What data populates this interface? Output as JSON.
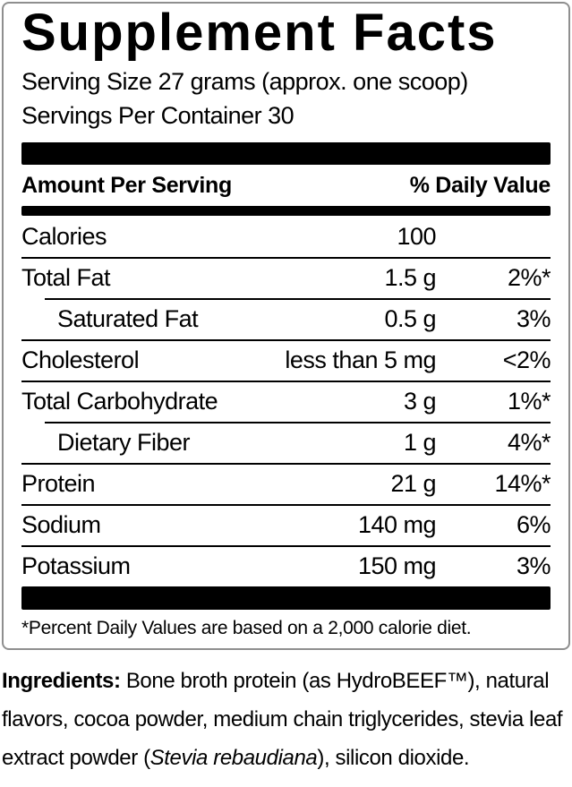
{
  "label": {
    "title": "Supplement Facts",
    "serving_size": "Serving Size 27 grams (approx. one scoop)",
    "servings_per_container": "Servings Per Container 30",
    "columns": {
      "amount_per_serving": "Amount Per Serving",
      "daily_value": "% Daily Value"
    },
    "rows": [
      {
        "name": "Calories",
        "amount": "100",
        "dv": "",
        "indent": false
      },
      {
        "name": "Total Fat",
        "amount": "1.5 g",
        "dv": "2%*",
        "indent": false
      },
      {
        "name": "Saturated Fat",
        "amount": "0.5 g",
        "dv": "3%",
        "indent": true
      },
      {
        "name": "Cholesterol",
        "amount": "less than 5 mg",
        "dv": "<2%",
        "indent": false
      },
      {
        "name": "Total Carbohydrate",
        "amount": "3 g",
        "dv": "1%*",
        "indent": false
      },
      {
        "name": "Dietary Fiber",
        "amount": "1 g",
        "dv": "4%*",
        "indent": true
      },
      {
        "name": "Protein",
        "amount": "21 g",
        "dv": "14%*",
        "indent": false
      },
      {
        "name": "Sodium",
        "amount": "140 mg",
        "dv": "6%",
        "indent": false
      },
      {
        "name": "Potassium",
        "amount": "150 mg",
        "dv": "3%",
        "indent": false
      }
    ],
    "footnote": "*Percent Daily Values are based on a 2,000 calorie diet.",
    "ingredients": {
      "label": "Ingredients:",
      "text_before_species": " Bone broth protein (as HydroBEEF™), natural flavors, cocoa powder, medium chain triglycerides, stevia leaf extract powder (",
      "species": "Stevia rebaudiana",
      "text_after_species": "), silicon dioxide."
    },
    "colors": {
      "text": "#000000",
      "bar": "#000000",
      "border": "#8f8f8f",
      "background": "#ffffff"
    }
  }
}
